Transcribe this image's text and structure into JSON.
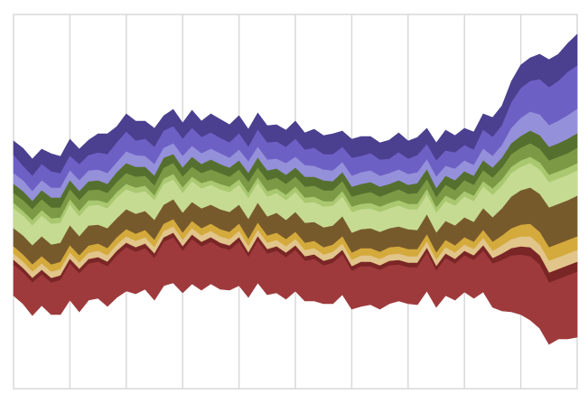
{
  "chart_data": {
    "type": "area",
    "stacked": true,
    "offset": "wiggle",
    "grid": {
      "vertical": true,
      "horizontal": false
    },
    "legend": "none",
    "title": "",
    "xlabel": "",
    "ylabel": "",
    "x": [
      0,
      1,
      2,
      3,
      4,
      5,
      6,
      7,
      8,
      9,
      10,
      11,
      12,
      13,
      14,
      15,
      16,
      17,
      18,
      19,
      20,
      21,
      22,
      23,
      24,
      25,
      26,
      27,
      28,
      29,
      30,
      31,
      32,
      33,
      34,
      35,
      36,
      37,
      38,
      39,
      40,
      41,
      42,
      43,
      44,
      45,
      46,
      47,
      48,
      49,
      50,
      51,
      52,
      53,
      54,
      55,
      56,
      57,
      58,
      59,
      60
    ],
    "top_boundary": [
      156,
      164,
      176,
      165,
      170,
      173,
      154,
      165,
      155,
      148,
      148,
      140,
      126,
      134,
      134,
      142,
      128,
      121,
      136,
      122,
      134,
      126,
      132,
      138,
      128,
      143,
      125,
      139,
      138,
      144,
      134,
      147,
      143,
      150,
      148,
      145,
      154,
      151,
      151,
      158,
      155,
      147,
      156,
      152,
      142,
      158,
      144,
      150,
      142,
      146,
      126,
      130,
      117,
      90,
      72,
      64,
      60,
      66,
      60,
      48,
      38
    ],
    "series": [
      {
        "name": "",
        "color": "#4b3f8f",
        "values": [
          16,
          20,
          19,
          17,
          20,
          19,
          19,
          17,
          17,
          21,
          23,
          18,
          20,
          22,
          20,
          21,
          17,
          19,
          18,
          20,
          18,
          21,
          21,
          20,
          20,
          20,
          19,
          19,
          19,
          19,
          20,
          19,
          21,
          21,
          23,
          18,
          21,
          22,
          19,
          19,
          21,
          22,
          20,
          20,
          18,
          20,
          23,
          19,
          19,
          20,
          18,
          22,
          22,
          24,
          26,
          26,
          28,
          31,
          30,
          32,
          35
        ]
      },
      {
        "name": "",
        "color": "#6d60c5",
        "values": [
          20,
          16,
          17,
          18,
          18,
          16,
          16,
          18,
          17,
          19,
          21,
          22,
          22,
          16,
          19,
          19,
          19,
          19,
          19,
          20,
          18,
          18,
          17,
          17,
          18,
          16,
          19,
          19,
          19,
          18,
          20,
          17,
          20,
          17,
          18,
          17,
          20,
          18,
          19,
          18,
          16,
          19,
          17,
          19,
          17,
          18,
          17,
          18,
          17,
          17,
          21,
          21,
          22,
          28,
          33,
          34,
          39,
          42,
          44,
          48,
          48
        ]
      },
      {
        "name": "",
        "color": "#9590da",
        "values": [
          12,
          12,
          11,
          11,
          11,
          11,
          11,
          12,
          12,
          12,
          12,
          11,
          13,
          13,
          12,
          13,
          11,
          12,
          13,
          12,
          12,
          12,
          12,
          11,
          12,
          13,
          12,
          12,
          11,
          13,
          12,
          13,
          12,
          12,
          12,
          11,
          12,
          13,
          13,
          12,
          12,
          12,
          12,
          12,
          11,
          13,
          11,
          13,
          12,
          12,
          13,
          13,
          14,
          17,
          20,
          21,
          23,
          24,
          25,
          26,
          27
        ]
      },
      {
        "name": "",
        "color": "#55702e",
        "values": [
          10,
          10,
          9,
          10,
          11,
          11,
          10,
          10,
          10,
          10,
          10,
          11,
          11,
          11,
          10,
          11,
          11,
          10,
          10,
          11,
          10,
          11,
          10,
          10,
          10,
          10,
          11,
          11,
          10,
          10,
          10,
          11,
          10,
          11,
          10,
          10,
          11,
          11,
          11,
          11,
          10,
          10,
          10,
          11,
          11,
          10,
          10,
          11,
          10,
          10,
          11,
          11,
          11,
          12,
          13,
          14,
          15,
          15,
          15,
          16,
          16
        ]
      },
      {
        "name": "",
        "color": "#7c9a45",
        "values": [
          11,
          12,
          12,
          12,
          12,
          11,
          11,
          12,
          11,
          12,
          11,
          11,
          12,
          12,
          11,
          11,
          12,
          12,
          12,
          11,
          11,
          12,
          12,
          11,
          11,
          12,
          11,
          12,
          12,
          12,
          11,
          12,
          12,
          12,
          12,
          11,
          11,
          11,
          12,
          11,
          11,
          12,
          11,
          12,
          11,
          11,
          12,
          11,
          12,
          12,
          12,
          12,
          13,
          14,
          14,
          15,
          15,
          16,
          16,
          16,
          17
        ]
      },
      {
        "name": "",
        "color": "#a9c870",
        "values": [
          6,
          5,
          6,
          6,
          6,
          6,
          6,
          6,
          6,
          5,
          6,
          6,
          6,
          6,
          6,
          5,
          6,
          6,
          6,
          5,
          6,
          5,
          6,
          6,
          6,
          6,
          6,
          6,
          5,
          6,
          6,
          6,
          6,
          6,
          5,
          6,
          6,
          6,
          6,
          6,
          6,
          6,
          6,
          6,
          6,
          6,
          6,
          6,
          6,
          6,
          6,
          7,
          7,
          7,
          7,
          7,
          8,
          8,
          8,
          8,
          8
        ]
      },
      {
        "name": "",
        "color": "#c5db92",
        "values": [
          22,
          22,
          22,
          23,
          23,
          22,
          23,
          22,
          22,
          22,
          22,
          23,
          22,
          23,
          22,
          22,
          23,
          22,
          22,
          23,
          22,
          22,
          22,
          22,
          22,
          23,
          22,
          22,
          22,
          22,
          22,
          22,
          22,
          23,
          22,
          22,
          23,
          22,
          22,
          22,
          22,
          23,
          22,
          23,
          22,
          22,
          22,
          22,
          23,
          23,
          24,
          25,
          25,
          26,
          26,
          27,
          27,
          28,
          28,
          28,
          28
        ]
      },
      {
        "name": "",
        "color": "#775a2c",
        "values": [
          20,
          21,
          21,
          22,
          22,
          21,
          22,
          21,
          22,
          21,
          22,
          21,
          22,
          22,
          21,
          22,
          21,
          22,
          22,
          21,
          22,
          21,
          22,
          22,
          21,
          22,
          22,
          21,
          22,
          21,
          22,
          22,
          21,
          22,
          21,
          22,
          22,
          21,
          22,
          22,
          21,
          22,
          22,
          21,
          22,
          22,
          21,
          22,
          22,
          22,
          24,
          27,
          30,
          35,
          38,
          40,
          42,
          44,
          44,
          44,
          45
        ]
      },
      {
        "name": "",
        "color": "#d4aa3c",
        "values": [
          8,
          8,
          8,
          8,
          8,
          8,
          8,
          8,
          8,
          8,
          8,
          8,
          8,
          8,
          8,
          8,
          8,
          8,
          8,
          8,
          8,
          8,
          8,
          8,
          8,
          8,
          8,
          8,
          8,
          8,
          8,
          8,
          8,
          8,
          8,
          8,
          8,
          8,
          8,
          8,
          8,
          8,
          8,
          8,
          8,
          8,
          8,
          8,
          8,
          8,
          9,
          10,
          11,
          12,
          13,
          14,
          14,
          15,
          15,
          15,
          15
        ]
      },
      {
        "name": "",
        "color": "#e1c58a",
        "values": [
          7,
          7,
          7,
          7,
          7,
          7,
          7,
          7,
          7,
          7,
          7,
          7,
          7,
          7,
          7,
          7,
          7,
          7,
          7,
          7,
          7,
          7,
          7,
          7,
          7,
          7,
          7,
          7,
          7,
          7,
          7,
          7,
          7,
          7,
          7,
          7,
          7,
          7,
          7,
          7,
          7,
          7,
          7,
          7,
          7,
          7,
          7,
          7,
          7,
          7,
          8,
          8,
          9,
          10,
          11,
          12,
          12,
          13,
          13,
          13,
          13
        ]
      },
      {
        "name": "",
        "color": "#7a2626",
        "values": [
          5,
          5,
          5,
          5,
          5,
          5,
          5,
          5,
          5,
          5,
          5,
          5,
          5,
          5,
          5,
          5,
          5,
          5,
          5,
          5,
          5,
          5,
          5,
          5,
          5,
          5,
          5,
          5,
          5,
          5,
          5,
          5,
          5,
          5,
          5,
          5,
          5,
          5,
          5,
          5,
          5,
          5,
          5,
          5,
          5,
          5,
          5,
          5,
          5,
          5,
          6,
          6,
          7,
          8,
          9,
          10,
          10,
          11,
          11,
          11,
          11
        ]
      },
      {
        "name": "",
        "color": "#9e3a3c",
        "values": [
          34,
          34,
          36,
          34,
          35,
          38,
          40,
          42,
          40,
          40,
          44,
          46,
          48,
          46,
          45,
          46,
          48,
          50,
          46,
          49,
          48,
          46,
          46,
          44,
          48,
          44,
          46,
          45,
          46,
          46,
          45,
          44,
          46,
          42,
          45,
          44,
          42,
          44,
          42,
          43,
          42,
          40,
          40,
          41,
          42,
          40,
          41,
          40,
          40,
          42,
          45,
          48,
          56,
          62,
          66,
          70,
          70,
          68,
          66,
          70,
          72
        ]
      }
    ]
  }
}
